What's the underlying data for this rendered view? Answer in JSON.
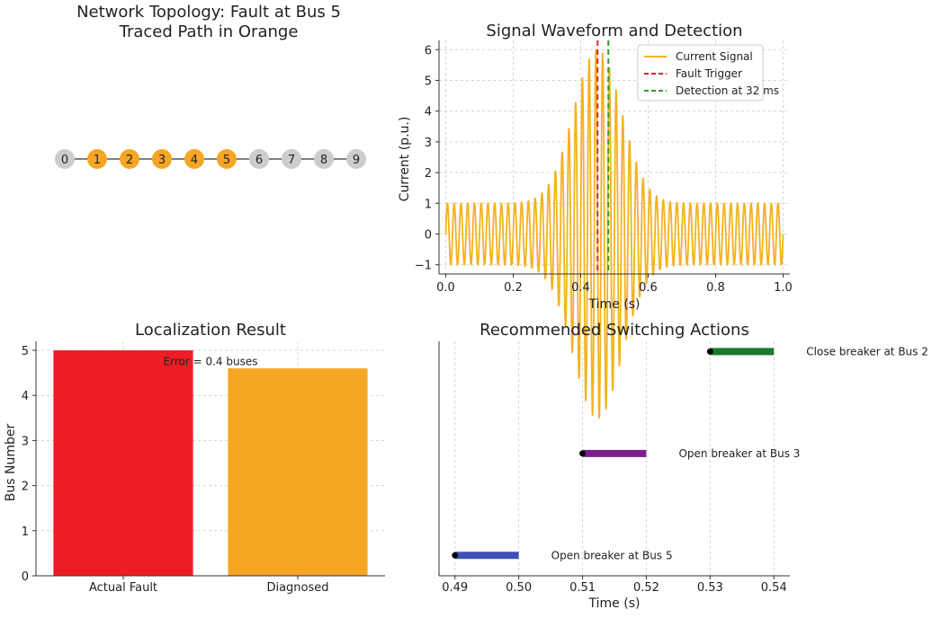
{
  "colors": {
    "highlight": "#f5a623",
    "neutral": "#cccccc",
    "signal": "#f5b21e",
    "fault_trigger": "#d62728",
    "detection": "#2ca02c",
    "bar_actual": "#ee1c25",
    "bar_diagnosed": "#f5a623",
    "action_1": "#3f51b5",
    "action_2": "#7b1f8c",
    "action_3": "#1a7a2e"
  },
  "chart_data": [
    {
      "type": "network",
      "title_line1": "Network Topology: Fault at Bus 5",
      "title_line2": "Traced Path in Orange",
      "nodes": [
        "0",
        "1",
        "2",
        "3",
        "4",
        "5",
        "6",
        "7",
        "8",
        "9"
      ],
      "highlighted": [
        1,
        2,
        3,
        4,
        5
      ]
    },
    {
      "type": "line",
      "title": "Signal Waveform and Detection",
      "xlabel": "Time (s)",
      "ylabel": "Current (p.u.)",
      "xlim": [
        -0.02,
        1.02
      ],
      "ylim": [
        -1.3,
        6.3
      ],
      "xticks": [
        0.0,
        0.2,
        0.4,
        0.6,
        0.8,
        1.0
      ],
      "xtick_labels": [
        "0.0",
        "0.2",
        "0.4",
        "0.6",
        "0.8",
        "1.0"
      ],
      "yticks": [
        -1,
        0,
        1,
        2,
        3,
        4,
        5,
        6
      ],
      "ytick_labels": [
        "−1",
        "0",
        "1",
        "2",
        "3",
        "4",
        "5",
        "6"
      ],
      "grid": true,
      "legend_position": "top-right",
      "signal": {
        "name": "Current Signal",
        "baseline_frequency_hz": 50,
        "peak_envelope": 5.0,
        "peak_time_s": 0.45,
        "envelope_width_s": 0.1
      },
      "vlines": [
        {
          "name": "Fault Trigger",
          "x": 0.45
        },
        {
          "name": "Detection at 32 ms",
          "x": 0.482
        }
      ]
    },
    {
      "type": "bar",
      "title": "Localization Result",
      "categories": [
        "Actual Fault",
        "Diagnosed"
      ],
      "values": [
        5,
        4.6
      ],
      "ylabel": "Bus Number",
      "ylim": [
        0,
        5.2
      ],
      "yticks": [
        0,
        1,
        2,
        3,
        4,
        5
      ],
      "ytick_labels": [
        "0",
        "1",
        "2",
        "3",
        "4",
        "5"
      ],
      "grid": true,
      "annotation": {
        "text": "Error = 0.4 buses",
        "x": 0.5,
        "y": 4.75
      }
    },
    {
      "type": "gantt",
      "title": "Recommended Switching Actions",
      "xlabel": "Time (s)",
      "xlim": [
        0.4875,
        0.5425
      ],
      "ylim": [
        0.8,
        3.1
      ],
      "xticks": [
        0.49,
        0.5,
        0.51,
        0.52,
        0.53,
        0.54
      ],
      "xtick_labels": [
        "0.49",
        "0.50",
        "0.51",
        "0.52",
        "0.53",
        "0.54"
      ],
      "grid": true,
      "actions": [
        {
          "label": "Open breaker at Bus 5",
          "start": 0.49,
          "end": 0.5,
          "level": 1
        },
        {
          "label": "Open breaker at Bus 3",
          "start": 0.51,
          "end": 0.52,
          "level": 2
        },
        {
          "label": "Close breaker at Bus 2",
          "start": 0.53,
          "end": 0.54,
          "level": 3
        }
      ]
    }
  ]
}
